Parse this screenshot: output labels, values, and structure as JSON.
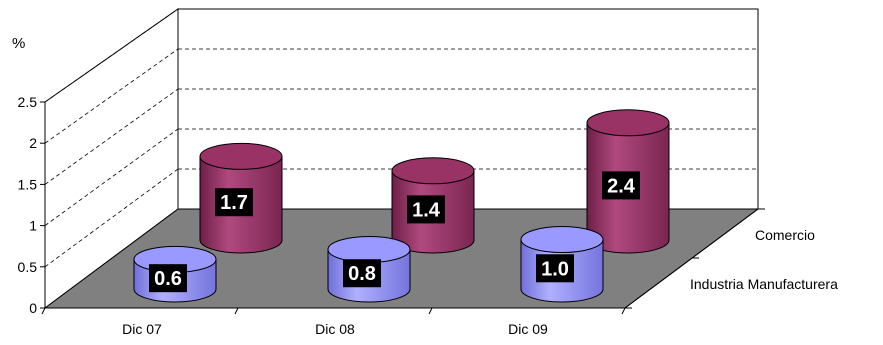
{
  "chart_data": {
    "type": "bar",
    "subtype": "3d-cylinder",
    "ylabel": "%",
    "ylim": [
      0,
      2.5
    ],
    "yticks": [
      "0",
      "0.5",
      "1",
      "1.5",
      "2",
      "2.5"
    ],
    "categories": [
      "Dic 07",
      "Dic 08",
      "Dic 09"
    ],
    "series": [
      {
        "name": "Industria Manufacturera",
        "values": [
          0.6,
          0.8,
          1.0
        ],
        "labels": [
          "0.6",
          "0.8",
          "1.0"
        ],
        "color": "#9999ff"
      },
      {
        "name": "Comercio",
        "values": [
          1.7,
          1.4,
          2.4
        ],
        "labels": [
          "1.7",
          "1.4",
          "2.4"
        ],
        "color": "#993366"
      }
    ],
    "grid": true,
    "floor_color": "#808080"
  }
}
